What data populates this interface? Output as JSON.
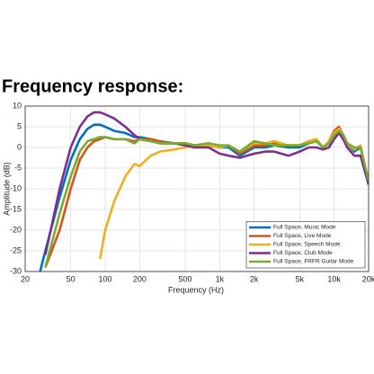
{
  "chart_data": {
    "type": "line",
    "title": "Frequency response:",
    "x_label": "Frequency (Hz)",
    "y_label": "Amplitude (dB)",
    "x_log": true,
    "grid": true,
    "legend": "lower right",
    "x": [
      27,
      30,
      40,
      50,
      60,
      70,
      80,
      90,
      100,
      120,
      150,
      180,
      200,
      250,
      300,
      400,
      500,
      600,
      800,
      1000,
      1200,
      1500,
      2000,
      2500,
      3000,
      4000,
      5000,
      6000,
      7000,
      8000,
      9000,
      10000,
      11000,
      12000,
      13000,
      15000,
      17000,
      20000
    ],
    "xlim": [
      20,
      20000
    ],
    "xticks": [
      20,
      50,
      100,
      200,
      500,
      {
        "value": 1000,
        "label": "1k"
      },
      {
        "value": 2000,
        "label": "2k"
      },
      {
        "value": 5000,
        "label": "5k"
      },
      {
        "value": 10000,
        "label": "10k"
      },
      {
        "value": 20000,
        "label": "20k"
      }
    ],
    "ylim": [
      -30,
      10
    ],
    "yticks": [
      -30,
      -25,
      -20,
      -15,
      -10,
      -5,
      0,
      5,
      10
    ],
    "series": [
      {
        "name": "Full Space, Music Mode",
        "color": "#0072bd",
        "values": [
          -30,
          -25,
          -12,
          -3,
          2,
          4.5,
          5.5,
          5.5,
          5,
          4,
          3.5,
          2.5,
          2.5,
          2,
          1.5,
          1,
          1,
          0.5,
          0.5,
          0,
          0,
          -2,
          0,
          0,
          0.5,
          0,
          0,
          1,
          1.5,
          0,
          1,
          3,
          4.5,
          3,
          1,
          -1,
          0,
          -9
        ]
      },
      {
        "name": "Full Space, Live Mode",
        "color": "#d95319",
        "values": [
          null,
          -29,
          -20,
          -10,
          -3,
          0,
          1.5,
          2,
          2.5,
          2,
          2,
          1.5,
          2,
          2,
          1.5,
          1,
          1,
          0.5,
          0.5,
          0,
          0.5,
          -1.5,
          0.5,
          0.5,
          1,
          0.5,
          0.5,
          1.5,
          2,
          0,
          1.5,
          4,
          5,
          3,
          1,
          -0.5,
          0.5,
          -9
        ]
      },
      {
        "name": "Full Space, Speech Mode",
        "color": "#edb120",
        "values": [
          null,
          null,
          null,
          null,
          null,
          null,
          null,
          -27,
          -20,
          -13,
          -7,
          -4,
          -4.5,
          -2,
          -1,
          -0.5,
          0,
          0.5,
          0.5,
          0,
          0.5,
          -1,
          1,
          1,
          1.5,
          0.5,
          0.5,
          1.5,
          2,
          0,
          1.5,
          3.5,
          4.5,
          3,
          1,
          -0.5,
          0.5,
          -9
        ]
      },
      {
        "name": "Full Space, Club Mode",
        "color": "#7e2f8e",
        "values": [
          null,
          -26,
          -10,
          0,
          5,
          7.5,
          8.5,
          8.5,
          8,
          7,
          5,
          3,
          2,
          1.5,
          1,
          1,
          0.5,
          0,
          0,
          -1.5,
          -2,
          -2.5,
          -1.5,
          -1,
          -1,
          -2,
          -1,
          0,
          0,
          -0.5,
          0,
          2,
          3.5,
          2,
          0,
          -2,
          -2,
          -9
        ]
      },
      {
        "name": "Full Space, FRFR Guitar Mode",
        "color": "#77ac30",
        "values": [
          null,
          -29,
          -16,
          -7,
          -1,
          1.5,
          2,
          2.5,
          2.5,
          2,
          2,
          1,
          2,
          1.5,
          1,
          1,
          1,
          0.5,
          1,
          0.5,
          0.5,
          -1,
          1.5,
          1,
          0.5,
          0.5,
          0.5,
          1,
          1.5,
          0,
          1,
          3,
          4,
          3,
          1,
          0,
          0,
          -8
        ]
      }
    ]
  }
}
